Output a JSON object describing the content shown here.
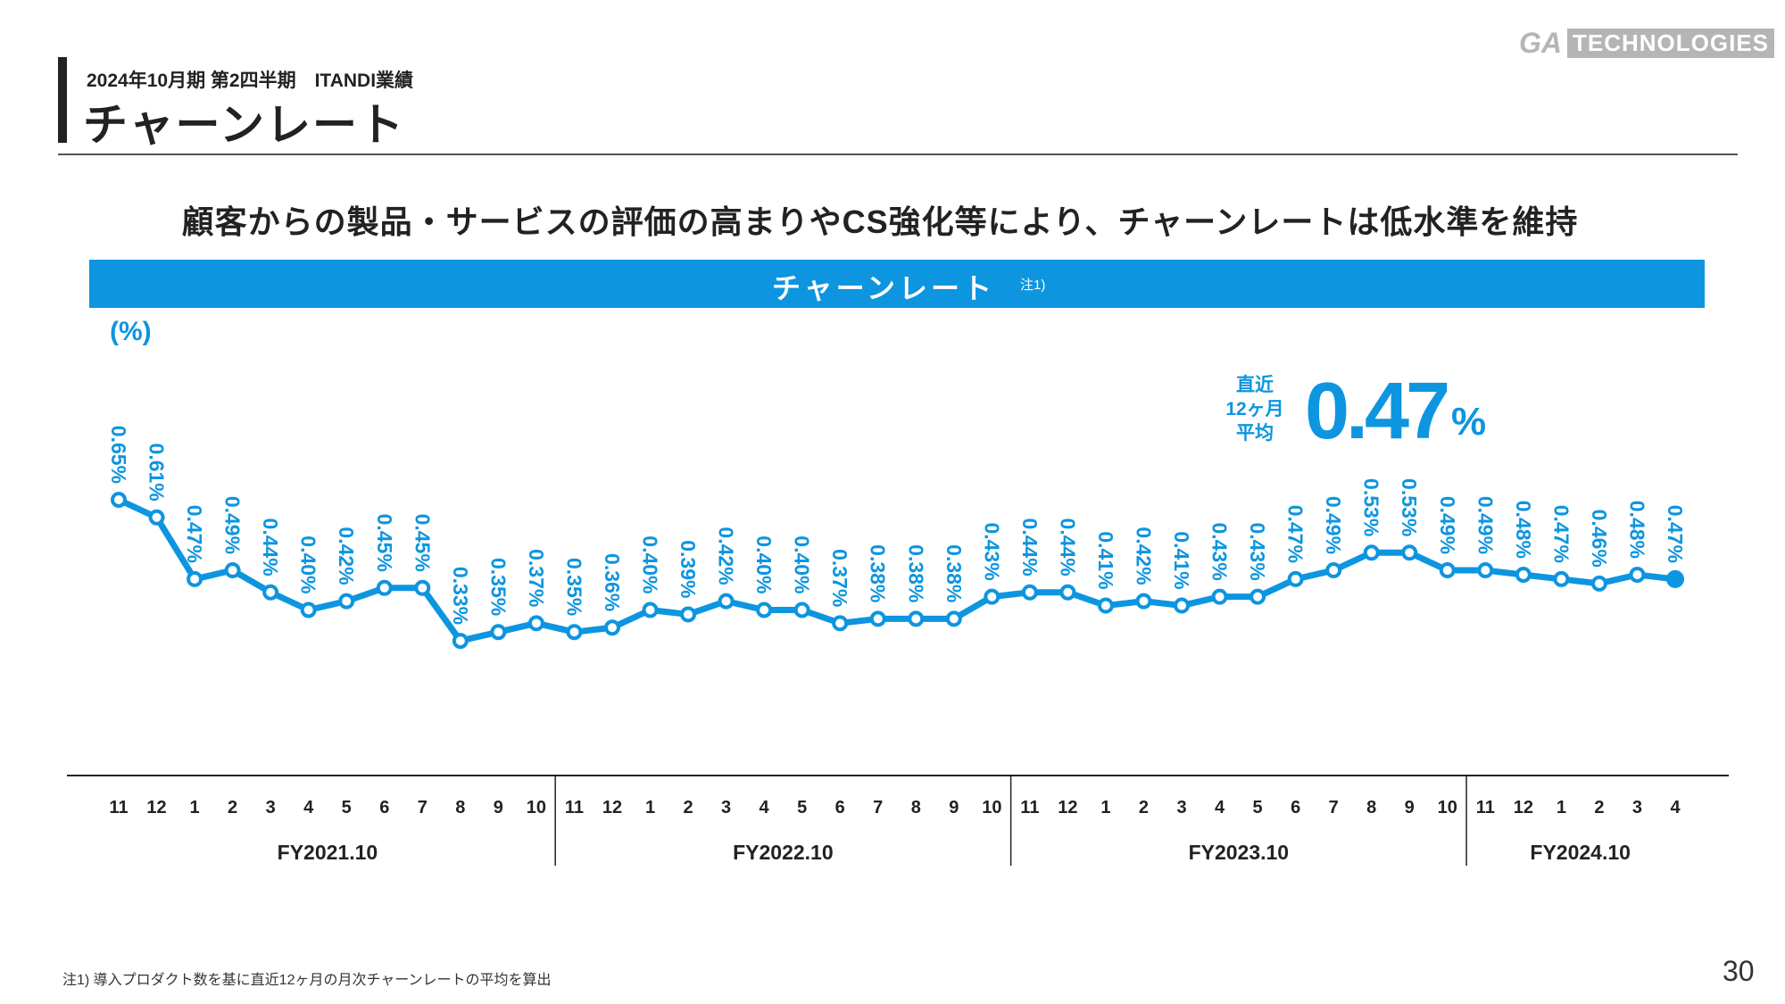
{
  "header": {
    "subtitle": "2024年10月期 第2四半期　ITANDI業績",
    "title": "チャーンレート",
    "logo_text": "GA TECHNOLOGIES"
  },
  "headline": "顧客からの製品・サービスの評価の高まりやCS強化等により、チャーンレートは低水準を維持",
  "banner": {
    "title": "チャーンレート",
    "note": "注1)"
  },
  "callout": {
    "label_lines": [
      "直近",
      "12ヶ月",
      "平均"
    ],
    "value": "0.47",
    "unit": "%"
  },
  "footnote": "注1) 導入プロダクト数を基に直近12ヶ月の月次チャーンレートの平均を算出",
  "page_number": "30",
  "chart_data": {
    "type": "line",
    "title": "チャーンレート",
    "ylabel": "(%)",
    "color": "#0d95e0",
    "categories": [
      "11",
      "12",
      "1",
      "2",
      "3",
      "4",
      "5",
      "6",
      "7",
      "8",
      "9",
      "10",
      "11",
      "12",
      "1",
      "2",
      "3",
      "4",
      "5",
      "6",
      "7",
      "8",
      "9",
      "10",
      "11",
      "12",
      "1",
      "2",
      "3",
      "4",
      "5",
      "6",
      "7",
      "8",
      "9",
      "10",
      "11",
      "12",
      "1",
      "2",
      "3",
      "4"
    ],
    "groups": [
      {
        "label": "FY2021.10",
        "count": 12
      },
      {
        "label": "FY2022.10",
        "count": 12
      },
      {
        "label": "FY2023.10",
        "count": 12
      },
      {
        "label": "FY2024.10",
        "count": 6
      }
    ],
    "values": [
      0.65,
      0.61,
      0.47,
      0.49,
      0.44,
      0.4,
      0.42,
      0.45,
      0.45,
      0.33,
      0.35,
      0.37,
      0.35,
      0.36,
      0.4,
      0.39,
      0.42,
      0.4,
      0.4,
      0.37,
      0.38,
      0.38,
      0.38,
      0.43,
      0.44,
      0.44,
      0.41,
      0.42,
      0.41,
      0.43,
      0.43,
      0.47,
      0.49,
      0.53,
      0.53,
      0.49,
      0.49,
      0.48,
      0.47,
      0.46,
      0.48,
      0.47
    ],
    "data_label_suffix": "%",
    "grid": false
  }
}
